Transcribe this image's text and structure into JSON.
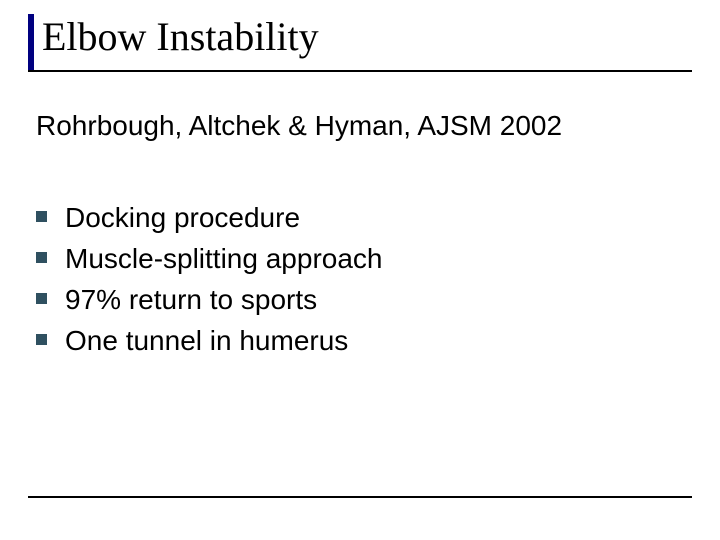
{
  "colors": {
    "background": "#ffffff",
    "text": "#000000",
    "title_accent": "#000080",
    "bullet": "#2f5060",
    "rule": "#000000"
  },
  "typography": {
    "title_font": "Times New Roman",
    "title_size_pt": 40,
    "body_font": "Arial",
    "subhead_size_pt": 28,
    "bullet_size_pt": 28
  },
  "layout": {
    "slide_width": 720,
    "slide_height": 540,
    "title_accent_width": 6,
    "title_accent_height": 56,
    "title_underline_width": 664,
    "bullet_square_size": 11,
    "bottom_rule_width": 664
  },
  "title": "Elbow Instability",
  "subhead": "Rohrbough, Altchek & Hyman, AJSM 2002",
  "bullets": [
    "Docking procedure",
    "Muscle-splitting approach",
    "97% return to sports",
    "One tunnel in humerus"
  ]
}
